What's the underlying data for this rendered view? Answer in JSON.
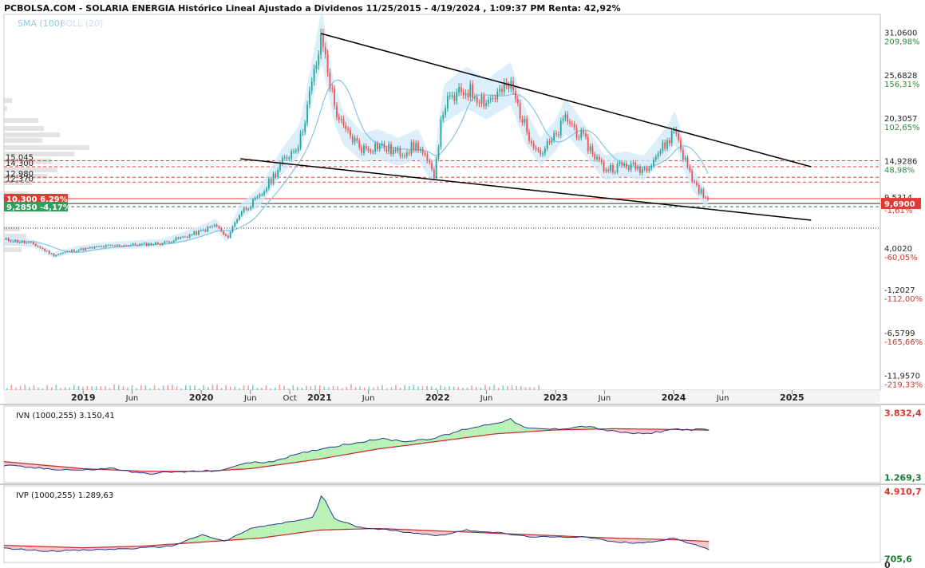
{
  "header": {
    "title": "PCBOLSA.COM - SOLARIA ENERGIA Histórico Lineal Ajustado a Dividenos 11/25/2015 - 4/19/2024 , 1:09:37 PM Renta: 42,92%",
    "legend_sma": "SMA (100)",
    "legend_boll": "BOLL (20)"
  },
  "colors": {
    "sma": "#7fc4e8",
    "boll_band": "#cfe8f7",
    "candle_up": "#26a69a",
    "candle_down": "#ef5350",
    "trendline": "#000000",
    "volume_profile": "#cccccc",
    "dashed_red": "#e53935",
    "label_red_bg": "#e53935",
    "label_green_bg": "#2e9e5b",
    "ivn_line": "#1f3a93",
    "ivn_ma": "#c62828",
    "fill_pos": "#b9f2b4",
    "fill_neg": "#f6c6c6",
    "pct_pos": "#2e8b3a",
    "pct_neg": "#d9342b"
  },
  "chart_data": [
    {
      "id": "main",
      "type": "line",
      "series_note": "candlestick price",
      "ylim": [
        -13.7,
        33.4
      ],
      "xlim": [
        "2018-05-01",
        "2025-10-01"
      ],
      "y_ticks": [
        {
          "value": 31.06,
          "label": "31,0600",
          "pct": "209,98%",
          "pct_sign": "pos"
        },
        {
          "value": 25.6828,
          "label": "25,6828",
          "pct": "156,31%",
          "pct_sign": "pos"
        },
        {
          "value": 20.3057,
          "label": "20,3057",
          "pct": "102,65%",
          "pct_sign": "pos"
        },
        {
          "value": 14.9286,
          "label": "14,9286",
          "pct": "48,98%",
          "pct_sign": "pos"
        },
        {
          "value": 4.002,
          "label": "4,0020",
          "pct": "-60,05%",
          "pct_sign": "neg"
        },
        {
          "value": -1.2027,
          "label": "-1,2027",
          "pct": "-112,00%",
          "pct_sign": "neg"
        },
        {
          "value": -6.5799,
          "label": "-6,5799",
          "pct": "-165,66%",
          "pct_sign": "neg"
        },
        {
          "value": -11.957,
          "label": "-11,9570",
          "pct": "-219,33%",
          "pct_sign": "neg"
        }
      ],
      "x_ticks": [
        {
          "date": "2019-01-01",
          "label": "2019",
          "major": true
        },
        {
          "date": "2019-06-01",
          "label": "Jun",
          "major": false
        },
        {
          "date": "2020-01-01",
          "label": "2020",
          "major": true
        },
        {
          "date": "2020-06-01",
          "label": "Jun",
          "major": false
        },
        {
          "date": "2020-10-01",
          "label": "Oct",
          "major": false
        },
        {
          "date": "2021-01-01",
          "label": "2021",
          "major": true
        },
        {
          "date": "2021-06-01",
          "label": "Jun",
          "major": false
        },
        {
          "date": "2022-01-01",
          "label": "2022",
          "major": true
        },
        {
          "date": "2022-06-01",
          "label": "Jun",
          "major": false
        },
        {
          "date": "2023-01-01",
          "label": "2023",
          "major": true
        },
        {
          "date": "2023-06-01",
          "label": "Jun",
          "major": false
        },
        {
          "date": "2024-01-01",
          "label": "2024",
          "major": true
        },
        {
          "date": "2024-06-01",
          "label": "Jun",
          "major": false
        },
        {
          "date": "2025-01-01",
          "label": "2025",
          "major": true
        }
      ],
      "price_points": [
        [
          "2018-05-01",
          5.2
        ],
        [
          "2018-08-01",
          4.6
        ],
        [
          "2018-10-01",
          3.2
        ],
        [
          "2018-12-01",
          3.8
        ],
        [
          "2019-03-01",
          4.3
        ],
        [
          "2019-06-01",
          4.5
        ],
        [
          "2019-09-01",
          4.7
        ],
        [
          "2019-11-01",
          5.4
        ],
        [
          "2020-01-01",
          6.2
        ],
        [
          "2020-02-15",
          7.0
        ],
        [
          "2020-03-20",
          5.3
        ],
        [
          "2020-05-01",
          8.6
        ],
        [
          "2020-07-01",
          10.5
        ],
        [
          "2020-09-01",
          14.5
        ],
        [
          "2020-11-01",
          17.5
        ],
        [
          "2021-01-08",
          30.5
        ],
        [
          "2021-02-15",
          22.0
        ],
        [
          "2021-03-15",
          19.0
        ],
        [
          "2021-05-15",
          16.5
        ],
        [
          "2021-07-01",
          17.0
        ],
        [
          "2021-09-01",
          16.0
        ],
        [
          "2021-11-01",
          17.0
        ],
        [
          "2021-12-20",
          13.2
        ],
        [
          "2022-01-20",
          22.0
        ],
        [
          "2022-04-01",
          24.0
        ],
        [
          "2022-06-01",
          22.5
        ],
        [
          "2022-08-15",
          24.5
        ],
        [
          "2022-10-01",
          19.0
        ],
        [
          "2022-11-15",
          16.0
        ],
        [
          "2023-01-01",
          18.0
        ],
        [
          "2023-02-01",
          20.5
        ],
        [
          "2023-04-01",
          17.5
        ],
        [
          "2023-06-01",
          14.0
        ],
        [
          "2023-08-01",
          14.5
        ],
        [
          "2023-10-01",
          14.0
        ],
        [
          "2023-12-15",
          17.5
        ],
        [
          "2024-01-05",
          19.2
        ],
        [
          "2024-02-01",
          15.5
        ],
        [
          "2024-03-01",
          12.5
        ],
        [
          "2024-04-19",
          9.69
        ]
      ],
      "trendlines": [
        {
          "from": [
            "2021-01-05",
            31.0
          ],
          "to": [
            "2025-03-01",
            14.3
          ]
        },
        {
          "from": [
            "2020-05-01",
            15.3
          ],
          "to": [
            "2025-03-01",
            7.6
          ]
        }
      ],
      "horizontal_levels": [
        {
          "value": 15.045,
          "style": "dashed",
          "color": "red",
          "label": "15.045"
        },
        {
          "value": 14.3,
          "style": "dashed",
          "color": "red",
          "label": "14.300"
        },
        {
          "value": 12.98,
          "style": "dashed",
          "color": "red",
          "label": "12.980"
        },
        {
          "value": 12.37,
          "style": "dashed",
          "color": "red",
          "label": "12.370"
        },
        {
          "value": 10.3,
          "style": "solid",
          "color": "red"
        },
        {
          "value": 9.285,
          "style": "dashed",
          "color": "green"
        },
        {
          "value": 9.69,
          "style": "solid",
          "color": "dark"
        },
        {
          "value": 6.6,
          "style": "dotted",
          "color": "black"
        }
      ],
      "price_labels": [
        {
          "text": "10,300 6,29%",
          "value": 10.3,
          "bg": "red"
        },
        {
          "text": "9,2850 -4,17%",
          "value": 9.285,
          "bg": "green"
        }
      ],
      "last_price": {
        "value": 9.69,
        "label": "9,6900"
      },
      "right_hidden_labels": [
        "9,5314",
        "-1,61%"
      ]
    },
    {
      "id": "ivn",
      "type": "area",
      "title": "IVN (1000,255)",
      "current_value": "3.150,41",
      "ylim": [
        1100,
        4000
      ],
      "y_labels": [
        {
          "value": 3832.4,
          "label": "3.832,4",
          "sign": "neg"
        },
        {
          "value": 1269.3,
          "label": "1.269,3",
          "sign": "pos"
        }
      ],
      "series": [
        {
          "points": [
            [
              "2018-05-01",
              1750
            ],
            [
              "2018-09-01",
              1620
            ],
            [
              "2019-01-01",
              1560
            ],
            [
              "2019-04-01",
              1640
            ],
            [
              "2019-07-01",
              1420
            ],
            [
              "2019-10-01",
              1480
            ],
            [
              "2020-01-01",
              1520
            ],
            [
              "2020-03-15",
              1560
            ],
            [
              "2020-05-01",
              1820
            ],
            [
              "2020-08-01",
              1900
            ],
            [
              "2020-11-01",
              2200
            ],
            [
              "2021-01-01",
              2400
            ],
            [
              "2021-04-01",
              2600
            ],
            [
              "2021-07-01",
              2800
            ],
            [
              "2021-10-01",
              2700
            ],
            [
              "2022-01-01",
              2850
            ],
            [
              "2022-04-01",
              3200
            ],
            [
              "2022-06-01",
              3350
            ],
            [
              "2022-08-15",
              3560
            ],
            [
              "2022-10-01",
              3200
            ],
            [
              "2023-01-01",
              3180
            ],
            [
              "2023-04-01",
              3300
            ],
            [
              "2023-07-01",
              3080
            ],
            [
              "2023-10-01",
              2980
            ],
            [
              "2024-01-01",
              3180
            ],
            [
              "2024-04-19",
              3150
            ]
          ]
        },
        {
          "points": [
            [
              "2018-05-01",
              1900
            ],
            [
              "2019-01-01",
              1620
            ],
            [
              "2019-07-01",
              1520
            ],
            [
              "2020-01-01",
              1510
            ],
            [
              "2020-06-01",
              1620
            ],
            [
              "2021-01-01",
              2000
            ],
            [
              "2021-07-01",
              2400
            ],
            [
              "2022-01-01",
              2700
            ],
            [
              "2022-07-01",
              3000
            ],
            [
              "2023-01-01",
              3150
            ],
            [
              "2023-07-01",
              3200
            ],
            [
              "2024-01-01",
              3170
            ],
            [
              "2024-04-19",
              3140
            ]
          ]
        }
      ]
    },
    {
      "id": "ivp",
      "type": "area",
      "title": "IVP (1000,255)",
      "current_value": "1.289,63",
      "ylim": [
        540,
        5100
      ],
      "y_labels": [
        {
          "value": 4910.7,
          "label": "4.910,7",
          "sign": "neg"
        },
        {
          "value": 705.6,
          "label": "705,6",
          "sign": "pos"
        },
        {
          "value": 0,
          "label": "0",
          "sign": "none"
        }
      ],
      "series": [
        {
          "points": [
            [
              "2018-05-01",
              1380
            ],
            [
              "2018-09-01",
              1200
            ],
            [
              "2019-01-01",
              1250
            ],
            [
              "2019-06-01",
              1350
            ],
            [
              "2019-10-01",
              1500
            ],
            [
              "2020-01-01",
              2200
            ],
            [
              "2020-03-15",
              1800
            ],
            [
              "2020-06-01",
              2600
            ],
            [
              "2020-10-01",
              3000
            ],
            [
              "2020-12-15",
              3300
            ],
            [
              "2021-01-08",
              4750
            ],
            [
              "2021-02-15",
              3200
            ],
            [
              "2021-05-01",
              2700
            ],
            [
              "2021-08-01",
              2500
            ],
            [
              "2021-11-01",
              2300
            ],
            [
              "2022-01-01",
              2150
            ],
            [
              "2022-04-01",
              2500
            ],
            [
              "2022-07-01",
              2350
            ],
            [
              "2022-10-01",
              2100
            ],
            [
              "2023-01-01",
              2050
            ],
            [
              "2023-04-01",
              2100
            ],
            [
              "2023-07-01",
              1750
            ],
            [
              "2023-10-01",
              1700
            ],
            [
              "2024-01-01",
              2000
            ],
            [
              "2024-04-19",
              1290
            ]
          ]
        },
        {
          "points": [
            [
              "2018-05-01",
              1550
            ],
            [
              "2019-01-01",
              1400
            ],
            [
              "2019-07-01",
              1500
            ],
            [
              "2020-01-01",
              1750
            ],
            [
              "2020-07-01",
              2000
            ],
            [
              "2021-01-01",
              2500
            ],
            [
              "2021-07-01",
              2600
            ],
            [
              "2022-01-01",
              2450
            ],
            [
              "2022-07-01",
              2300
            ],
            [
              "2023-01-01",
              2150
            ],
            [
              "2023-07-01",
              2000
            ],
            [
              "2024-01-01",
              1900
            ],
            [
              "2024-04-19",
              1800
            ]
          ]
        }
      ]
    }
  ]
}
